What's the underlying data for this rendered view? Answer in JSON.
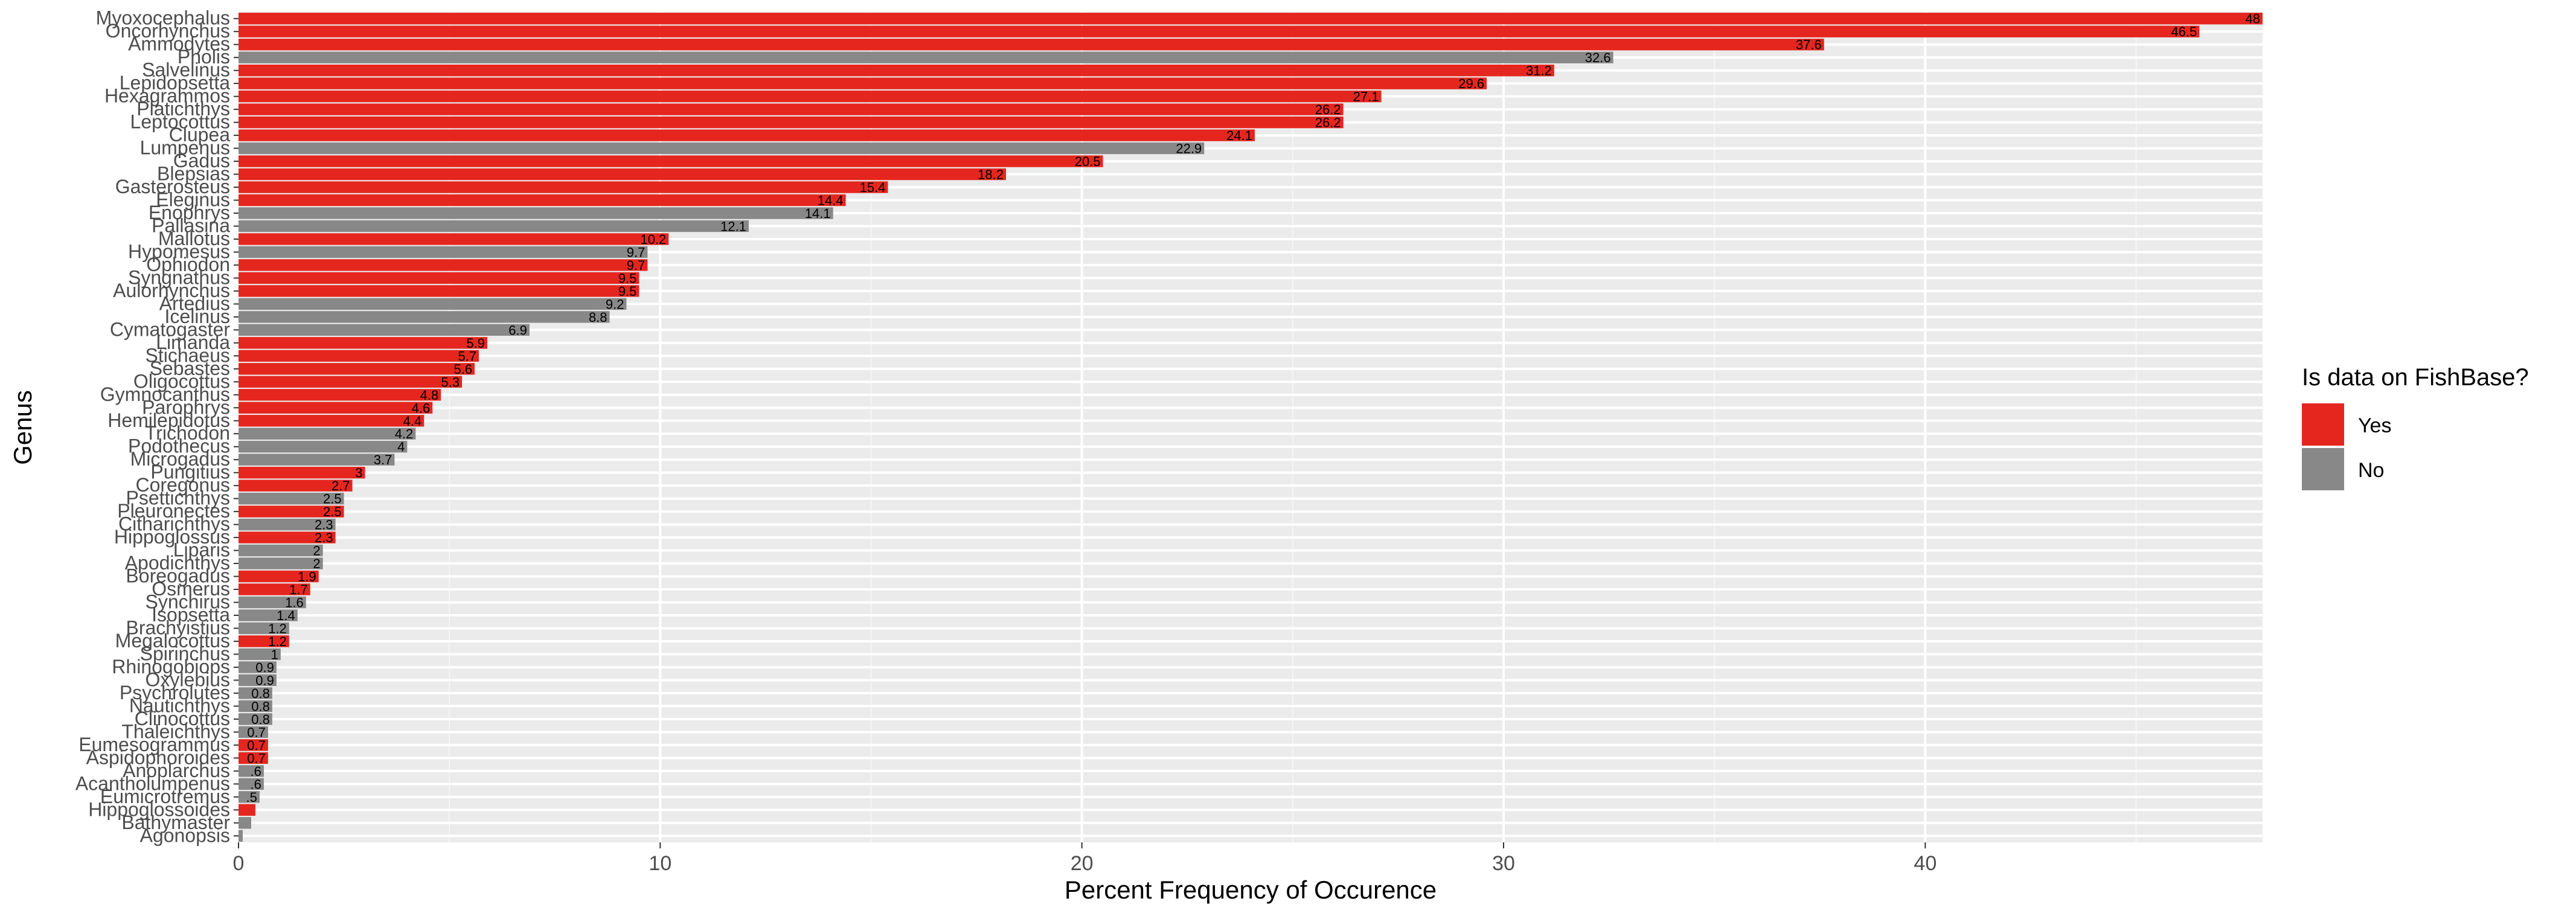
{
  "chart_data": {
    "type": "bar",
    "orientation": "horizontal",
    "xlabel": "Percent Frequency of Occurence",
    "ylabel": "Genus",
    "xlim": [
      0,
      48
    ],
    "x_ticks": [
      0,
      10,
      20,
      30,
      40
    ],
    "grid": true,
    "legend": {
      "title": "Is data on FishBase?",
      "position": "right",
      "entries": [
        {
          "label": "Yes",
          "color": "#E5261F"
        },
        {
          "label": "No",
          "color": "#888888"
        }
      ]
    },
    "categories": [
      "Myoxocephalus",
      "Oncorhynchus",
      "Ammodytes",
      "Pholis",
      "Salvelinus",
      "Lepidopsetta",
      "Hexagrammos",
      "Platichthys",
      "Leptocottus",
      "Clupea",
      "Lumpenus",
      "Gadus",
      "Blepsias",
      "Gasterosteus",
      "Eleginus",
      "Enophrys",
      "Pallasina",
      "Mallotus",
      "Hypomesus",
      "Ophiodon",
      "Syngnathus",
      "Aulorhynchus",
      "Artedius",
      "Icelinus",
      "Cymatogaster",
      "Limanda",
      "Stichaeus",
      "Sebastes",
      "Oligocottus",
      "Gymnocanthus",
      "Parophrys",
      "Hemilepidotus",
      "Trichodon",
      "Podothecus",
      "Microgadus",
      "Pungitius",
      "Coregonus",
      "Psettichthys",
      "Pleuronectes",
      "Citharichthys",
      "Hippoglossus",
      "Liparis",
      "Apodichthys",
      "Boreogadus",
      "Osmerus",
      "Synchirus",
      "Isopsetta",
      "Brachyistius",
      "Megalocottus",
      "Spirinchus",
      "Rhinogobiops",
      "Oxylebius",
      "Psychrolutes",
      "Nautichthys",
      "Clinocottus",
      "Thaleichthys",
      "Eumesogrammus",
      "Aspidophoroides",
      "Anoplarchus",
      "Acantholumpenus",
      "Eumicrotremus",
      "Hippoglossoides",
      "Bathymaster",
      "Agonopsis"
    ],
    "values": [
      48,
      46.5,
      37.6,
      32.6,
      31.2,
      29.6,
      27.1,
      26.2,
      26.2,
      24.1,
      22.9,
      20.5,
      18.2,
      15.4,
      14.4,
      14.1,
      12.1,
      10.2,
      9.7,
      9.7,
      9.5,
      9.5,
      9.2,
      8.8,
      6.9,
      5.9,
      5.7,
      5.6,
      5.3,
      4.8,
      4.6,
      4.4,
      4.2,
      4,
      3.7,
      3,
      2.7,
      2.5,
      2.5,
      2.3,
      2.3,
      2,
      2,
      1.9,
      1.7,
      1.6,
      1.4,
      1.2,
      1.2,
      1,
      0.9,
      0.9,
      0.8,
      0.8,
      0.8,
      0.7,
      0.7,
      0.7,
      0.6,
      0.6,
      0.5,
      0.4,
      0.3,
      0.1
    ],
    "labels": [
      "48",
      "46.5",
      "37.6",
      "32.6",
      "31.2",
      "29.6",
      "27.1",
      "26.2",
      "26.2",
      "24.1",
      "22.9",
      "20.5",
      "18.2",
      "15.4",
      "14.4",
      "14.1",
      "12.1",
      "10.2",
      "9.7",
      "9.7",
      "9.5",
      "9.5",
      "9.2",
      "8.8",
      "6.9",
      "5.9",
      "5.7",
      "5.6",
      "5.3",
      "4.8",
      "4.6",
      "4.4",
      "4.2",
      "4",
      "3.7",
      "3",
      "2.7",
      "2.5",
      "2.5",
      "2.3",
      "2.3",
      "2",
      "2",
      "1.9",
      "1.7",
      "1.6",
      "1.4",
      "1.2",
      "1.2",
      "1",
      "0.9",
      "0.9",
      "0.8",
      "0.8",
      "0.8",
      "0.7",
      "0.7",
      "0.7",
      ".6",
      ".6",
      ".5",
      "",
      "",
      ""
    ],
    "on_fishbase": [
      "Yes",
      "Yes",
      "Yes",
      "No",
      "Yes",
      "Yes",
      "Yes",
      "Yes",
      "Yes",
      "Yes",
      "No",
      "Yes",
      "Yes",
      "Yes",
      "Yes",
      "No",
      "No",
      "Yes",
      "No",
      "Yes",
      "Yes",
      "Yes",
      "No",
      "No",
      "No",
      "Yes",
      "Yes",
      "Yes",
      "Yes",
      "Yes",
      "Yes",
      "Yes",
      "No",
      "No",
      "No",
      "Yes",
      "Yes",
      "No",
      "Yes",
      "No",
      "Yes",
      "No",
      "No",
      "Yes",
      "Yes",
      "No",
      "No",
      "No",
      "Yes",
      "No",
      "No",
      "No",
      "No",
      "No",
      "No",
      "No",
      "Yes",
      "Yes",
      "No",
      "No",
      "No",
      "Yes",
      "No",
      "No"
    ]
  }
}
